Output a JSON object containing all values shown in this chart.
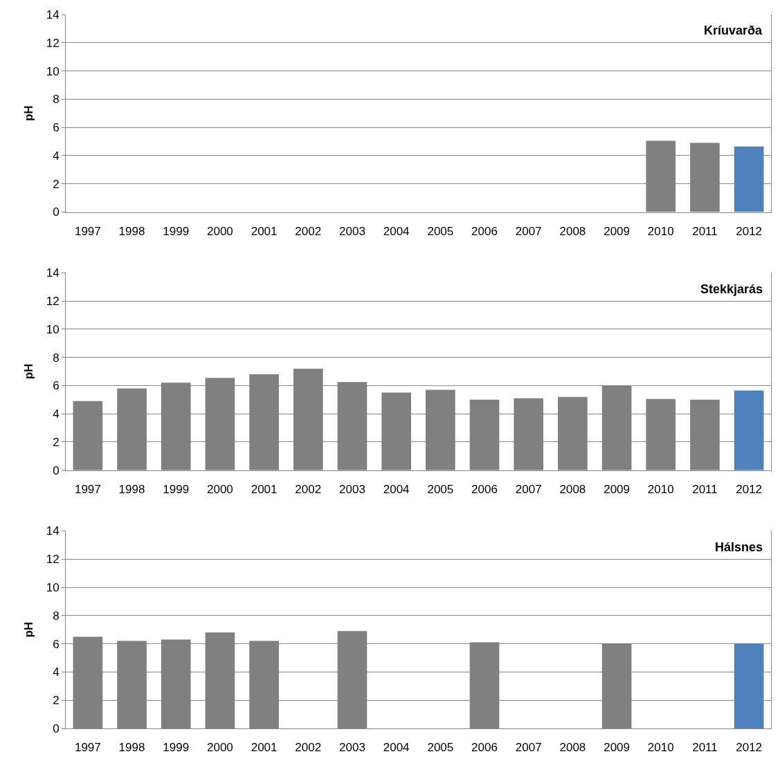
{
  "chart_data": [
    {
      "type": "bar",
      "title": "Kríuvarða",
      "ylabel": "pH",
      "categories": [
        "1997",
        "1998",
        "1999",
        "2000",
        "2001",
        "2002",
        "2003",
        "2004",
        "2005",
        "2006",
        "2007",
        "2008",
        "2009",
        "2010",
        "2011",
        "2012"
      ],
      "values": [
        null,
        null,
        null,
        null,
        null,
        null,
        null,
        null,
        null,
        null,
        null,
        null,
        null,
        5.05,
        4.9,
        4.65
      ],
      "colors": [
        "#808080",
        "#808080",
        "#808080",
        "#808080",
        "#808080",
        "#808080",
        "#808080",
        "#808080",
        "#808080",
        "#808080",
        "#808080",
        "#808080",
        "#808080",
        "#808080",
        "#808080",
        "#4f81bd"
      ],
      "ylim": [
        0,
        14
      ],
      "yticks": [
        0,
        2,
        4,
        6,
        8,
        10,
        12,
        14
      ],
      "grid": "y"
    },
    {
      "type": "bar",
      "title": "Stekkjarás",
      "ylabel": "pH",
      "categories": [
        "1997",
        "1998",
        "1999",
        "2000",
        "2001",
        "2002",
        "2003",
        "2004",
        "2005",
        "2006",
        "2007",
        "2008",
        "2009",
        "2010",
        "2011",
        "2012"
      ],
      "values": [
        4.9,
        5.8,
        6.2,
        6.55,
        6.8,
        7.2,
        6.25,
        5.5,
        5.7,
        5.0,
        5.1,
        5.2,
        6.0,
        5.05,
        5.0,
        5.65
      ],
      "colors": [
        "#808080",
        "#808080",
        "#808080",
        "#808080",
        "#808080",
        "#808080",
        "#808080",
        "#808080",
        "#808080",
        "#808080",
        "#808080",
        "#808080",
        "#808080",
        "#808080",
        "#808080",
        "#4f81bd"
      ],
      "ylim": [
        0,
        14
      ],
      "yticks": [
        0,
        2,
        4,
        6,
        8,
        10,
        12,
        14
      ],
      "grid": "y"
    },
    {
      "type": "bar",
      "title": "Hálsnes",
      "ylabel": "pH",
      "categories": [
        "1997",
        "1998",
        "1999",
        "2000",
        "2001",
        "2002",
        "2003",
        "2004",
        "2005",
        "2006",
        "2007",
        "2008",
        "2009",
        "2010",
        "2011",
        "2012"
      ],
      "values": [
        6.5,
        6.2,
        6.3,
        6.8,
        6.2,
        null,
        6.9,
        null,
        null,
        6.1,
        null,
        null,
        6.0,
        null,
        null,
        6.0
      ],
      "colors": [
        "#808080",
        "#808080",
        "#808080",
        "#808080",
        "#808080",
        "#808080",
        "#808080",
        "#808080",
        "#808080",
        "#808080",
        "#808080",
        "#808080",
        "#808080",
        "#808080",
        "#808080",
        "#4f81bd"
      ],
      "ylim": [
        0,
        14
      ],
      "yticks": [
        0,
        2,
        4,
        6,
        8,
        10,
        12,
        14
      ],
      "grid": "y"
    }
  ]
}
